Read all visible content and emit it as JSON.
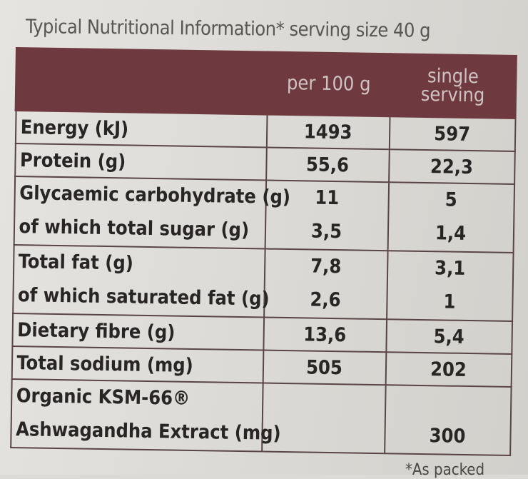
{
  "caption": "Typical Nutritional Information* serving size 40 g",
  "columns": {
    "label": "",
    "per100": "per 100 g",
    "serving_line1": "single",
    "serving_line2": "serving"
  },
  "rows": [
    {
      "label": "Energy (kJ)",
      "per100": "1493",
      "serving": "597"
    },
    {
      "label": "Protein (g)",
      "per100": "55,6",
      "serving": "22,3"
    },
    {
      "label": "Glycaemic carbohydrate (g)",
      "per100": "11",
      "serving": "5",
      "sub_label": "of which total sugar (g)",
      "sub_per100": "3,5",
      "sub_serving": "1,4"
    },
    {
      "label": "Total fat (g)",
      "per100": "7,8",
      "serving": "3,1",
      "sub_label": "of which saturated fat (g)",
      "sub_per100": "2,6",
      "sub_serving": "1"
    },
    {
      "label": "Dietary fibre (g)",
      "per100": "13,6",
      "serving": "5,4"
    },
    {
      "label": "Total sodium (mg)",
      "per100": "505",
      "serving": "202"
    },
    {
      "label": "Organic KSM-66®",
      "per100": "",
      "serving": "",
      "sub_label": "Ashwagandha Extract (mg)",
      "sub_per100": "",
      "sub_serving": "300"
    }
  ],
  "footnote": "*As packed",
  "colors": {
    "header_bg": "#6e3a3f",
    "header_text": "#cfc2c3",
    "border": "#5a4446"
  }
}
